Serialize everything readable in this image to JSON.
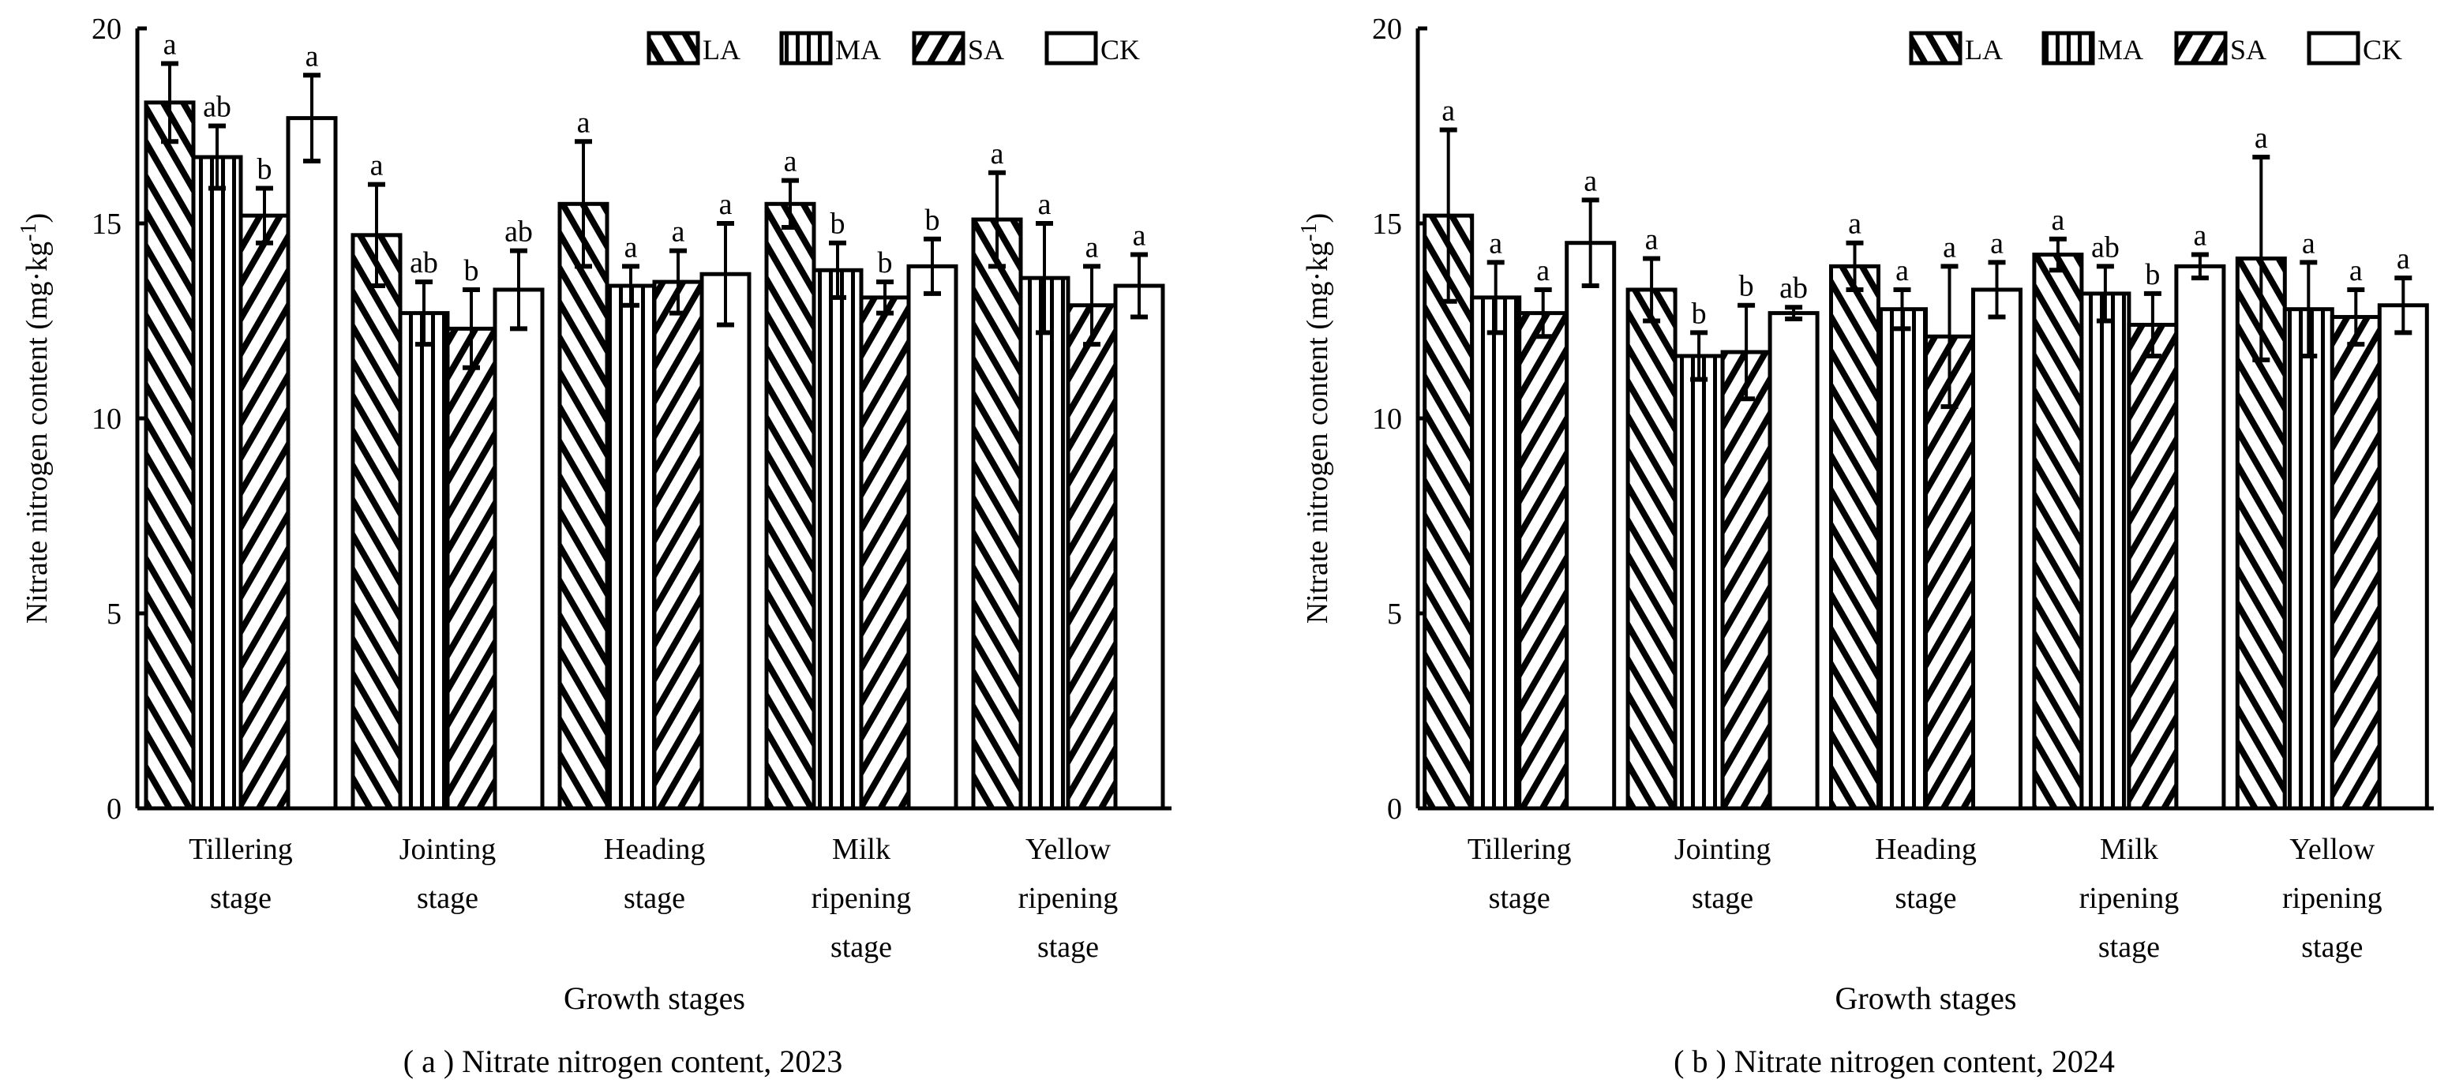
{
  "chart_data": [
    {
      "type": "bar",
      "caption": "( a ) Nitrate nitrogen content, 2023",
      "xlabel": "Growth stages",
      "ylabel": "Nitrate nitrogen content (mg·kg",
      "ylabel_sup": "-1",
      "ylabel_close": ")",
      "ylim": [
        0,
        20
      ],
      "yticks": [
        0,
        5,
        10,
        15,
        20
      ],
      "legend_position": "top-right",
      "categories": [
        [
          "Tillering",
          "stage"
        ],
        [
          "Jointing",
          "stage"
        ],
        [
          "Heading",
          "stage"
        ],
        [
          "Milk",
          "ripening",
          "stage"
        ],
        [
          "Yellow",
          "ripening",
          "stage"
        ]
      ],
      "series": [
        {
          "name": "LA",
          "pattern": "back-diagonal",
          "values": [
            18.1,
            14.7,
            15.5,
            15.5,
            15.1
          ],
          "err": [
            1.0,
            1.3,
            1.6,
            0.6,
            1.2
          ],
          "letters": [
            "a",
            "a",
            "a",
            "a",
            "a"
          ]
        },
        {
          "name": "MA",
          "pattern": "vertical",
          "values": [
            16.7,
            12.7,
            13.4,
            13.8,
            13.6
          ],
          "err": [
            0.8,
            0.8,
            0.5,
            0.7,
            1.4
          ],
          "letters": [
            "ab",
            "ab",
            "a",
            "b",
            "a"
          ]
        },
        {
          "name": "SA",
          "pattern": "forward-diagonal",
          "values": [
            15.2,
            12.3,
            13.5,
            13.1,
            12.9
          ],
          "err": [
            0.7,
            1.0,
            0.8,
            0.4,
            1.0
          ],
          "letters": [
            "b",
            "b",
            "a",
            "b",
            "a"
          ]
        },
        {
          "name": "CK",
          "pattern": "none",
          "values": [
            17.7,
            13.3,
            13.7,
            13.9,
            13.4
          ],
          "err": [
            1.1,
            1.0,
            1.3,
            0.7,
            0.8
          ],
          "letters": [
            "a",
            "ab",
            "a",
            "b",
            "a"
          ]
        }
      ]
    },
    {
      "type": "bar",
      "caption": "( b ) Nitrate nitrogen content, 2024",
      "xlabel": "Growth stages",
      "ylabel": "Nitrate nitrogen content (mg·kg",
      "ylabel_sup": "-1",
      "ylabel_close": ")",
      "ylim": [
        0,
        20
      ],
      "yticks": [
        0,
        5,
        10,
        15,
        20
      ],
      "legend_position": "top-right",
      "categories": [
        [
          "Tillering",
          "stage"
        ],
        [
          "Jointing",
          "stage"
        ],
        [
          "Heading",
          "stage"
        ],
        [
          "Milk",
          "ripening",
          "stage"
        ],
        [
          "Yellow",
          "ripening",
          "stage"
        ]
      ],
      "series": [
        {
          "name": "LA",
          "pattern": "back-diagonal",
          "values": [
            15.2,
            13.3,
            13.9,
            14.2,
            14.1
          ],
          "err": [
            2.2,
            0.8,
            0.6,
            0.4,
            2.6
          ],
          "letters": [
            "a",
            "a",
            "a",
            "a",
            "a"
          ]
        },
        {
          "name": "MA",
          "pattern": "vertical",
          "values": [
            13.1,
            11.6,
            12.8,
            13.2,
            12.8
          ],
          "err": [
            0.9,
            0.6,
            0.5,
            0.7,
            1.2
          ],
          "letters": [
            "a",
            "b",
            "a",
            "ab",
            "a"
          ]
        },
        {
          "name": "SA",
          "pattern": "forward-diagonal",
          "values": [
            12.7,
            11.7,
            12.1,
            12.4,
            12.6
          ],
          "err": [
            0.6,
            1.2,
            1.8,
            0.8,
            0.7
          ],
          "letters": [
            "a",
            "b",
            "a",
            "b",
            "a"
          ]
        },
        {
          "name": "CK",
          "pattern": "none",
          "values": [
            14.5,
            12.7,
            13.3,
            13.9,
            12.9
          ],
          "err": [
            1.1,
            0.15,
            0.7,
            0.3,
            0.7
          ],
          "letters": [
            "a",
            "ab",
            "a",
            "a",
            "a"
          ]
        }
      ]
    }
  ]
}
